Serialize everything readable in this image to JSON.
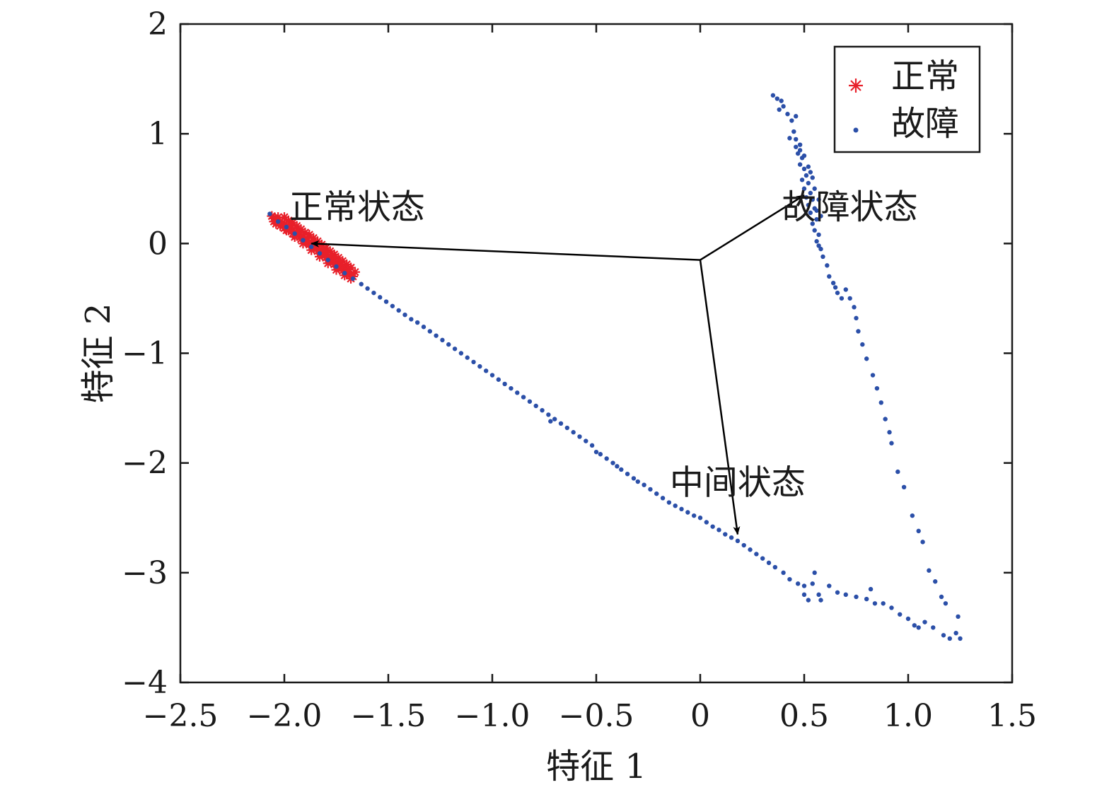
{
  "chart_data": {
    "type": "scatter",
    "xlabel": "特征 1",
    "ylabel": "特征 2",
    "xlim": [
      -2.5,
      1.5
    ],
    "ylim": [
      -4,
      2
    ],
    "xticks": [
      {
        "value": -2.5,
        "label": "−2.5"
      },
      {
        "value": -2.0,
        "label": "−2.0"
      },
      {
        "value": -1.5,
        "label": "−1.5"
      },
      {
        "value": -1.0,
        "label": "−1.0"
      },
      {
        "value": -0.5,
        "label": "−0.5"
      },
      {
        "value": 0,
        "label": "0"
      },
      {
        "value": 0.5,
        "label": "0.5"
      },
      {
        "value": 1.0,
        "label": "1.0"
      },
      {
        "value": 1.5,
        "label": "1.5"
      }
    ],
    "yticks": [
      {
        "value": 2,
        "label": "2"
      },
      {
        "value": 1,
        "label": "1"
      },
      {
        "value": 0,
        "label": "0"
      },
      {
        "value": -1,
        "label": "−1"
      },
      {
        "value": -2,
        "label": "−2"
      },
      {
        "value": -3,
        "label": "−3"
      },
      {
        "value": -4,
        "label": "−4"
      }
    ],
    "grid": false,
    "legend": {
      "placement": "top-right"
    },
    "series": [
      {
        "name": "正常",
        "marker": "asterisk",
        "color": "#e8202a",
        "points": [
          [
            -2.06,
            0.25
          ],
          [
            -2.05,
            0.23
          ],
          [
            -2.04,
            0.22
          ],
          [
            -2.03,
            0.21
          ],
          [
            -2.02,
            0.2
          ],
          [
            -2.01,
            0.19
          ],
          [
            -2.0,
            0.18
          ],
          [
            -1.99,
            0.16
          ],
          [
            -1.98,
            0.15
          ],
          [
            -1.97,
            0.14
          ],
          [
            -1.96,
            0.12
          ],
          [
            -1.95,
            0.11
          ],
          [
            -1.94,
            0.1
          ],
          [
            -1.93,
            0.08
          ],
          [
            -1.92,
            0.07
          ],
          [
            -1.91,
            0.06
          ],
          [
            -1.9,
            0.04
          ],
          [
            -1.89,
            0.03
          ],
          [
            -1.88,
            0.01
          ],
          [
            -1.87,
            0.0
          ],
          [
            -1.86,
            -0.02
          ],
          [
            -1.85,
            -0.03
          ],
          [
            -1.84,
            -0.04
          ],
          [
            -1.83,
            -0.06
          ],
          [
            -1.82,
            -0.07
          ],
          [
            -1.81,
            -0.09
          ],
          [
            -1.8,
            -0.1
          ],
          [
            -1.79,
            -0.12
          ],
          [
            -1.78,
            -0.13
          ],
          [
            -1.77,
            -0.15
          ],
          [
            -1.76,
            -0.16
          ],
          [
            -1.75,
            -0.17
          ],
          [
            -1.74,
            -0.19
          ],
          [
            -1.73,
            -0.2
          ],
          [
            -1.72,
            -0.21
          ],
          [
            -1.71,
            -0.23
          ],
          [
            -1.7,
            -0.24
          ],
          [
            -1.69,
            -0.26
          ],
          [
            -1.68,
            -0.28
          ],
          [
            -1.67,
            -0.3
          ],
          [
            -2.04,
            0.18
          ],
          [
            -2.02,
            0.16
          ],
          [
            -2.0,
            0.14
          ],
          [
            -1.98,
            0.12
          ],
          [
            -1.96,
            0.09
          ],
          [
            -1.94,
            0.07
          ],
          [
            -1.92,
            0.04
          ],
          [
            -1.9,
            0.02
          ],
          [
            -1.88,
            -0.01
          ],
          [
            -1.86,
            -0.04
          ],
          [
            -1.84,
            -0.07
          ],
          [
            -1.82,
            -0.1
          ],
          [
            -1.8,
            -0.13
          ],
          [
            -1.78,
            -0.16
          ],
          [
            -1.76,
            -0.19
          ],
          [
            -1.74,
            -0.22
          ],
          [
            -1.72,
            -0.25
          ],
          [
            -1.7,
            -0.27
          ],
          [
            -2.0,
            0.24
          ],
          [
            -1.98,
            0.21
          ],
          [
            -1.96,
            0.19
          ],
          [
            -1.94,
            0.16
          ],
          [
            -1.92,
            0.13
          ],
          [
            -1.9,
            0.1
          ],
          [
            -1.88,
            0.08
          ],
          [
            -1.86,
            0.05
          ],
          [
            -1.84,
            0.02
          ],
          [
            -1.82,
            -0.01
          ],
          [
            -1.8,
            -0.04
          ],
          [
            -1.78,
            -0.07
          ],
          [
            -1.76,
            -0.1
          ],
          [
            -1.74,
            -0.13
          ],
          [
            -1.72,
            -0.16
          ],
          [
            -1.7,
            -0.19
          ],
          [
            -1.68,
            -0.22
          ],
          [
            -1.66,
            -0.26
          ],
          [
            -2.05,
            0.2
          ],
          [
            -2.03,
            0.24
          ],
          [
            -1.97,
            0.17
          ],
          [
            -1.93,
            0.11
          ],
          [
            -1.89,
            0.05
          ],
          [
            -1.85,
            -0.0
          ],
          [
            -1.81,
            -0.05
          ],
          [
            -1.77,
            -0.11
          ],
          [
            -1.73,
            -0.17
          ],
          [
            -1.69,
            -0.23
          ],
          [
            -1.99,
            0.12
          ],
          [
            -1.95,
            0.06
          ],
          [
            -1.91,
            0.0
          ],
          [
            -1.87,
            -0.06
          ],
          [
            -1.83,
            -0.12
          ],
          [
            -1.79,
            -0.18
          ],
          [
            -1.75,
            -0.24
          ],
          [
            -1.71,
            -0.29
          ],
          [
            -1.68,
            -0.32
          ]
        ]
      },
      {
        "name": "故障",
        "marker": "dot",
        "color": "#2b4fa8",
        "points": [
          [
            -2.07,
            0.27
          ],
          [
            -2.03,
            0.2
          ],
          [
            -1.99,
            0.15
          ],
          [
            -1.95,
            0.09
          ],
          [
            -1.91,
            0.03
          ],
          [
            -1.87,
            -0.03
          ],
          [
            -1.83,
            -0.09
          ],
          [
            -1.79,
            -0.15
          ],
          [
            -1.75,
            -0.21
          ],
          [
            -1.71,
            -0.27
          ],
          [
            -1.67,
            -0.32
          ],
          [
            -1.63,
            -0.37
          ],
          [
            -1.6,
            -0.41
          ],
          [
            -1.57,
            -0.45
          ],
          [
            -1.54,
            -0.49
          ],
          [
            -1.51,
            -0.53
          ],
          [
            -1.48,
            -0.57
          ],
          [
            -1.45,
            -0.61
          ],
          [
            -1.42,
            -0.65
          ],
          [
            -1.39,
            -0.69
          ],
          [
            -1.36,
            -0.72
          ],
          [
            -1.33,
            -0.76
          ],
          [
            -1.3,
            -0.8
          ],
          [
            -1.27,
            -0.84
          ],
          [
            -1.24,
            -0.88
          ],
          [
            -1.21,
            -0.92
          ],
          [
            -1.18,
            -0.96
          ],
          [
            -1.15,
            -1.0
          ],
          [
            -1.12,
            -1.04
          ],
          [
            -1.09,
            -1.08
          ],
          [
            -1.06,
            -1.12
          ],
          [
            -1.03,
            -1.16
          ],
          [
            -1.0,
            -1.2
          ],
          [
            -0.97,
            -1.24
          ],
          [
            -0.94,
            -1.28
          ],
          [
            -0.91,
            -1.32
          ],
          [
            -0.88,
            -1.36
          ],
          [
            -0.85,
            -1.4
          ],
          [
            -0.82,
            -1.44
          ],
          [
            -0.79,
            -1.48
          ],
          [
            -0.76,
            -1.52
          ],
          [
            -0.73,
            -1.56
          ],
          [
            -0.7,
            -1.6
          ],
          [
            -0.72,
            -1.62
          ],
          [
            -0.67,
            -1.64
          ],
          [
            -0.64,
            -1.68
          ],
          [
            -0.61,
            -1.72
          ],
          [
            -0.58,
            -1.76
          ],
          [
            -0.55,
            -1.8
          ],
          [
            -0.52,
            -1.84
          ],
          [
            -0.5,
            -1.9
          ],
          [
            -0.48,
            -1.92
          ],
          [
            -0.45,
            -1.96
          ],
          [
            -0.42,
            -2.0
          ],
          [
            -0.4,
            -2.03
          ],
          [
            -0.38,
            -2.06
          ],
          [
            -0.35,
            -2.1
          ],
          [
            -0.32,
            -2.14
          ],
          [
            -0.3,
            -2.17
          ],
          [
            -0.27,
            -2.2
          ],
          [
            -0.24,
            -2.24
          ],
          [
            -0.21,
            -2.28
          ],
          [
            -0.18,
            -2.32
          ],
          [
            -0.15,
            -2.36
          ],
          [
            -0.12,
            -2.39
          ],
          [
            -0.09,
            -2.42
          ],
          [
            -0.06,
            -2.45
          ],
          [
            -0.03,
            -2.48
          ],
          [
            0.0,
            -2.5
          ],
          [
            0.03,
            -2.54
          ],
          [
            0.06,
            -2.58
          ],
          [
            0.09,
            -2.61
          ],
          [
            0.12,
            -2.65
          ],
          [
            0.15,
            -2.68
          ],
          [
            0.18,
            -2.71
          ],
          [
            0.21,
            -2.75
          ],
          [
            0.24,
            -2.79
          ],
          [
            0.27,
            -2.83
          ],
          [
            0.3,
            -2.87
          ],
          [
            0.33,
            -2.91
          ],
          [
            0.36,
            -2.95
          ],
          [
            0.4,
            -3.0
          ],
          [
            0.43,
            -3.06
          ],
          [
            0.47,
            -3.1
          ],
          [
            0.5,
            -3.12
          ],
          [
            0.5,
            -3.2
          ],
          [
            0.52,
            -3.25
          ],
          [
            0.55,
            -3.0
          ],
          [
            0.54,
            -3.1
          ],
          [
            0.57,
            -3.2
          ],
          [
            0.58,
            -3.25
          ],
          [
            0.62,
            -3.12
          ],
          [
            0.66,
            -3.18
          ],
          [
            0.7,
            -3.2
          ],
          [
            0.75,
            -3.22
          ],
          [
            0.8,
            -3.24
          ],
          [
            0.82,
            -3.15
          ],
          [
            0.84,
            -3.28
          ],
          [
            0.88,
            -3.28
          ],
          [
            0.92,
            -3.32
          ],
          [
            0.96,
            -3.38
          ],
          [
            1.0,
            -3.42
          ],
          [
            1.03,
            -3.48
          ],
          [
            1.05,
            -3.5
          ],
          [
            1.08,
            -3.45
          ],
          [
            1.12,
            -3.5
          ],
          [
            1.17,
            -3.57
          ],
          [
            1.2,
            -3.6
          ],
          [
            1.23,
            -3.55
          ],
          [
            1.24,
            -3.4
          ],
          [
            1.25,
            -3.6
          ],
          [
            0.35,
            1.35
          ],
          [
            0.37,
            1.32
          ],
          [
            0.39,
            1.3
          ],
          [
            0.38,
            1.22
          ],
          [
            0.4,
            1.25
          ],
          [
            0.42,
            1.18
          ],
          [
            0.44,
            1.12
          ],
          [
            0.46,
            1.16
          ],
          [
            0.45,
            1.02
          ],
          [
            0.43,
            0.96
          ],
          [
            0.46,
            0.95
          ],
          [
            0.48,
            0.9
          ],
          [
            0.47,
            0.82
          ],
          [
            0.49,
            0.78
          ],
          [
            0.48,
            0.72
          ],
          [
            0.5,
            0.68
          ],
          [
            0.51,
            0.62
          ],
          [
            0.49,
            0.58
          ],
          [
            0.52,
            0.55
          ],
          [
            0.5,
            0.5
          ],
          [
            0.53,
            0.46
          ],
          [
            0.51,
            0.42
          ],
          [
            0.54,
            0.4
          ],
          [
            0.52,
            0.35
          ],
          [
            0.55,
            0.32
          ],
          [
            0.53,
            0.28
          ],
          [
            0.56,
            0.22
          ],
          [
            0.54,
            0.18
          ],
          [
            0.55,
            0.12
          ],
          [
            0.57,
            0.08
          ],
          [
            0.56,
            0.02
          ],
          [
            0.57,
            -0.02
          ],
          [
            0.56,
            0.3
          ],
          [
            0.54,
            0.6
          ],
          [
            0.52,
            0.7
          ],
          [
            0.5,
            0.8
          ],
          [
            0.48,
            0.85
          ],
          [
            0.46,
            0.88
          ],
          [
            0.53,
            0.65
          ],
          [
            0.55,
            0.5
          ],
          [
            0.57,
            0.4
          ],
          [
            0.58,
            0.25
          ],
          [
            0.58,
            -0.05
          ],
          [
            0.59,
            -0.12
          ],
          [
            0.61,
            -0.2
          ],
          [
            0.62,
            -0.3
          ],
          [
            0.64,
            -0.36
          ],
          [
            0.65,
            -0.4
          ],
          [
            0.66,
            -0.45
          ],
          [
            0.68,
            -0.5
          ],
          [
            0.7,
            -0.42
          ],
          [
            0.72,
            -0.5
          ],
          [
            0.74,
            -0.58
          ],
          [
            0.75,
            -0.68
          ],
          [
            0.76,
            -0.8
          ],
          [
            0.78,
            -0.92
          ],
          [
            0.8,
            -1.05
          ],
          [
            0.83,
            -1.2
          ],
          [
            0.85,
            -1.32
          ],
          [
            0.87,
            -1.45
          ],
          [
            0.89,
            -1.6
          ],
          [
            0.91,
            -1.72
          ],
          [
            0.92,
            -1.82
          ],
          [
            0.95,
            -2.08
          ],
          [
            0.98,
            -2.22
          ],
          [
            1.02,
            -2.48
          ],
          [
            1.05,
            -2.62
          ],
          [
            1.07,
            -2.72
          ],
          [
            1.1,
            -2.98
          ],
          [
            1.13,
            -3.08
          ],
          [
            1.16,
            -3.22
          ],
          [
            1.18,
            -3.28
          ]
        ]
      }
    ],
    "annotations": [
      {
        "text": "正常状态",
        "x": -1.65,
        "y": 0.33,
        "from": [
          0.0,
          -0.15
        ],
        "to": [
          -1.87,
          0.0
        ]
      },
      {
        "text": "故障状态",
        "x": 0.72,
        "y": 0.33,
        "from": [
          0.0,
          -0.15
        ],
        "to": [
          0.5,
          0.44
        ]
      },
      {
        "text": "中间状态",
        "x": 0.18,
        "y": -2.18,
        "from": [
          0.0,
          -0.15
        ],
        "to": [
          0.18,
          -2.65
        ]
      }
    ]
  }
}
